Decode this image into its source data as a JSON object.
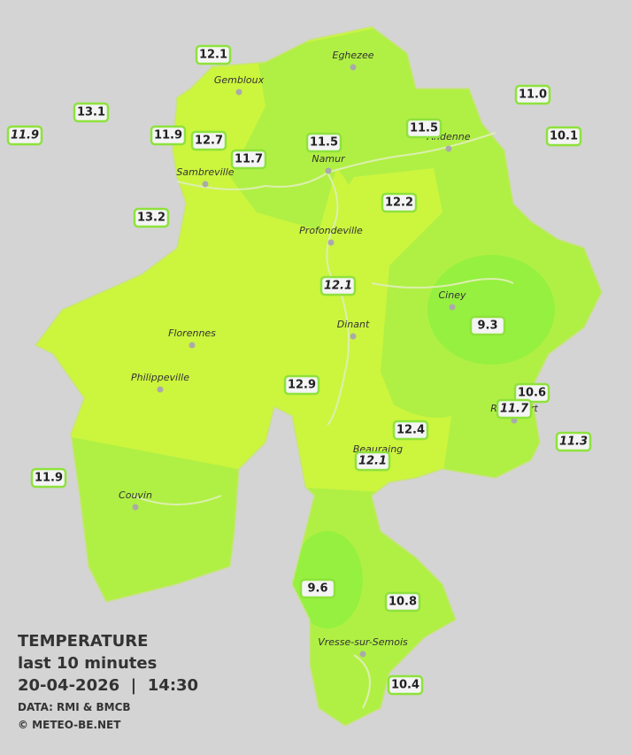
{
  "cities": [
    "Eghezee",
    "Gembloux",
    "Andenne",
    "Namur",
    "Sambreville",
    "Profondeville",
    "Ciney",
    "Dinant",
    "Florennes",
    "Philippeville",
    "Rochefort",
    "Beauraing",
    "Couvin",
    "Vresse-sur-Semois"
  ],
  "stations": [
    {
      "value": 12.1,
      "italic": false
    },
    {
      "value": 13.1,
      "italic": false
    },
    {
      "value": 11.9,
      "italic": true
    },
    {
      "value": 11.9,
      "italic": false
    },
    {
      "value": 12.7,
      "italic": false
    },
    {
      "value": 11.7,
      "italic": false
    },
    {
      "value": 11.5,
      "italic": false
    },
    {
      "value": 11.5,
      "italic": false
    },
    {
      "value": 11,
      "label": "11.0",
      "italic": false
    },
    {
      "value": 10.1,
      "italic": false
    },
    {
      "value": 13.2,
      "italic": false
    },
    {
      "value": 12.2,
      "italic": false
    },
    {
      "value": 12.1,
      "italic": true
    },
    {
      "value": 9.3,
      "italic": false
    },
    {
      "value": 12.9,
      "italic": false
    },
    {
      "value": 10.6,
      "italic": false
    },
    {
      "value": 11.7,
      "italic": true
    },
    {
      "value": 12.4,
      "italic": false
    },
    {
      "value": 11.3,
      "italic": true
    },
    {
      "value": 12.1,
      "italic": true
    },
    {
      "value": 11.9,
      "italic": false
    },
    {
      "value": 9.6,
      "italic": false
    },
    {
      "value": 10.8,
      "italic": false
    },
    {
      "value": 10.4,
      "italic": false
    }
  ],
  "legend": {
    "title": "TEMPERATURE",
    "subtitle": "last 10 minutes",
    "datetime": "20-04-2026  |  14:30",
    "source": "DATA: RMI & BMCB",
    "credit": "© METEO-BE.NET"
  }
}
